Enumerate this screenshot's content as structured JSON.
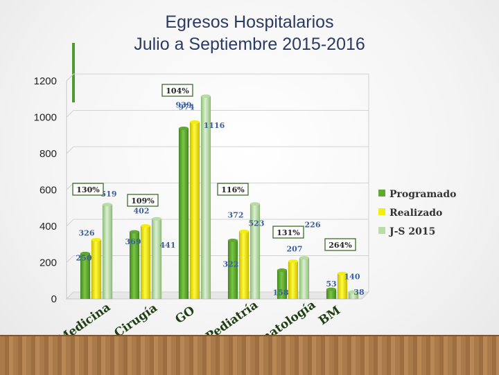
{
  "title": {
    "line1": "Egresos Hospitalarios",
    "line2": "Julio a Septiembre 2015-2016"
  },
  "colors": {
    "title": "#2a3a66",
    "accent": "#4f9a33",
    "programado": "#5fa832",
    "realizado": "#f2ee12",
    "js2015": "#b9dca6",
    "value_label": "#3b5fa0",
    "box_border": "#3d6b2a"
  },
  "chart_data": {
    "type": "bar",
    "categories": [
      "Medicina",
      "Cirugía",
      "GO",
      "Pediatría",
      "Neonatología",
      "BM"
    ],
    "series": [
      {
        "name": "Programado",
        "values": [
          250,
          369,
          939,
          322,
          158,
          53
        ]
      },
      {
        "name": "Realizado",
        "values": [
          326,
          402,
          974,
          372,
          207,
          140
        ]
      },
      {
        "name": "J-S 2015",
        "values": [
          519,
          441,
          1116,
          523,
          226,
          38
        ]
      }
    ],
    "percent_labels": [
      "130%",
      "109%",
      "104%",
      "116%",
      "131%",
      "264%"
    ],
    "yticks": [
      "0",
      "200",
      "400",
      "600",
      "800",
      "1000",
      "1200"
    ],
    "ylim": [
      0,
      1200
    ],
    "legend_position": "right",
    "grid": true
  }
}
